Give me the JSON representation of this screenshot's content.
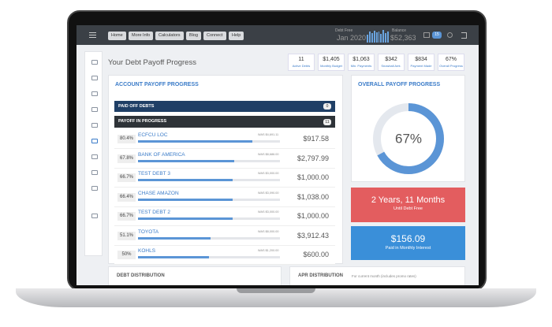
{
  "nav": {
    "buttons": [
      "Home",
      "More Info",
      "Calculators",
      "Blog",
      "Connect",
      "Help"
    ],
    "debt_free_label": "Debt Free",
    "debt_free_date": "Jan 2020",
    "balance_label": "Balance",
    "balance": "$52,363",
    "badge": "15"
  },
  "header": {
    "title": "Your Debt Payoff Progress"
  },
  "stats": [
    {
      "value": "11",
      "label": "Active Debts"
    },
    {
      "value": "$1,405",
      "label": "Monthly Budget"
    },
    {
      "value": "$1,063",
      "label": "Min. Payments"
    },
    {
      "value": "$342",
      "label": "Snowball Amt."
    },
    {
      "value": "$834",
      "label": "Payment Made"
    },
    {
      "value": "67%",
      "label": "Overall Progress"
    }
  ],
  "account_panel": {
    "title": "ACCOUNT PAYOFF PROGRESS",
    "paid_off": {
      "title": "PAID OFF DEBTS",
      "count": "0"
    },
    "in_progress": {
      "title": "PAYOFF IN PROGRESS",
      "count": "11"
    },
    "debts": [
      {
        "name": "ECFCU LOC",
        "progress": 80.4,
        "progress_label": "80.4%",
        "was": "WAS $4,691.11",
        "balance": "$917.58"
      },
      {
        "name": "BANK OF AMERICA",
        "progress": 67.8,
        "progress_label": "67.8%",
        "was": "WAS $8,686.00",
        "balance": "$2,797.99"
      },
      {
        "name": "TEST DEBT 3",
        "progress": 66.7,
        "progress_label": "66.7%",
        "was": "WAS $3,000.00",
        "balance": "$1,000.00"
      },
      {
        "name": "CHASE AMAZON",
        "progress": 66.4,
        "progress_label": "66.4%",
        "was": "WAS $3,090.00",
        "balance": "$1,038.00"
      },
      {
        "name": "TEST DEBT 2",
        "progress": 66.7,
        "progress_label": "66.7%",
        "was": "WAS $3,000.00",
        "balance": "$1,000.00"
      },
      {
        "name": "TOYOTA",
        "progress": 51.1,
        "progress_label": "51.1%",
        "was": "WAS $8,000.00",
        "balance": "$3,912.43"
      },
      {
        "name": "KOHLS",
        "progress": 50,
        "progress_label": "50%",
        "was": "WAS $1,200.00",
        "balance": "$600.00"
      }
    ]
  },
  "overall": {
    "title": "OVERALL PAYOFF PROGRESS",
    "percent": 67,
    "percent_label": "67%"
  },
  "time_left": {
    "value": "2 Years, 11 Months",
    "label": "Until Debt Free"
  },
  "interest": {
    "value": "$156.09",
    "label": "Paid in Monthly Interest"
  },
  "bottom": {
    "debt_title": "DEBT DISTRIBUTION",
    "apr_title": "APR DISTRIBUTION",
    "apr_note": "For current month (includes promo rates)"
  }
}
